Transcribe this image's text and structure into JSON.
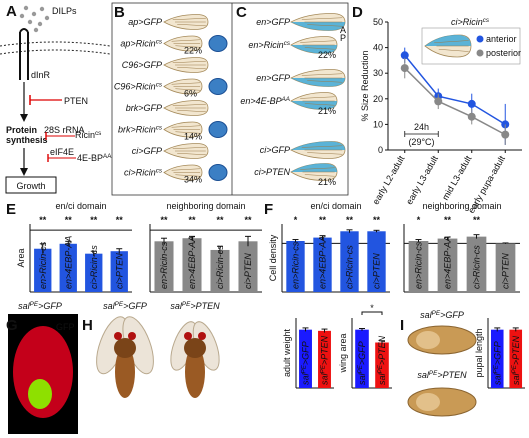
{
  "panel_a": {
    "label": "A",
    "ligand": "DILPs",
    "receptor": "dInR",
    "inhibitor": "PTEN",
    "rrna": "28S rRNA",
    "ricin": {
      "pre": "Ricin",
      "sup": "cs"
    },
    "eif": "eIF4E",
    "bp": {
      "pre": "4E-BP",
      "sup": "AA"
    },
    "process": [
      "Protein",
      "synthesis"
    ],
    "outcome": "Growth"
  },
  "panel_b": {
    "label": "B",
    "rows": [
      {
        "genotype": "ap>GFP"
      },
      {
        "genotype": {
          "pre": "ap>Ricin",
          "sup": "cs"
        },
        "reduction": "22%"
      },
      {
        "genotype": "C96>GFP"
      },
      {
        "genotype": {
          "pre": "C96>Ricin",
          "sup": "cs"
        },
        "reduction": "6%"
      },
      {
        "genotype": "brk>GFP"
      },
      {
        "genotype": {
          "pre": "brk>Ricin",
          "sup": "cs"
        },
        "reduction": "14%"
      },
      {
        "genotype": "ci>GFP"
      },
      {
        "genotype": {
          "pre": "ci>Ricin",
          "sup": "cs"
        },
        "reduction": "34%"
      }
    ]
  },
  "panel_c": {
    "label": "C",
    "compartments": [
      "A",
      "P"
    ],
    "rows": [
      {
        "genotype": "en>GFP"
      },
      {
        "genotype": {
          "pre": "en>Ricin",
          "sup": "cs"
        },
        "reduction": "22%"
      },
      {
        "genotype": "en>GFP"
      },
      {
        "genotype": {
          "pre": "en>4E-BP",
          "sup": "AA"
        },
        "reduction": "21%"
      },
      {
        "genotype": "ci>GFP"
      },
      {
        "genotype": "ci>PTEN",
        "reduction": "21%"
      }
    ]
  },
  "panel_g": {
    "label": "G",
    "genotype": {
      "pre": "sal",
      "sup": "PE",
      "post": ">GFP"
    },
    "channel": "GFP"
  },
  "panel_h": {
    "label": "H",
    "genotypes": [
      {
        "pre": "sal",
        "sup": "PE",
        "post": ">GFP"
      },
      {
        "pre": "sal",
        "sup": "PE",
        "post": ">PTEN"
      }
    ]
  },
  "panel_i": {
    "label": "I",
    "genotypes": [
      {
        "pre": "sal",
        "sup": "PE",
        "post": ">GFP"
      },
      {
        "pre": "sal",
        "sup": "PE",
        "post": ">PTEN"
      }
    ]
  },
  "chart_data": [
    {
      "type": "line",
      "panel": "D",
      "inset_title": {
        "pre": "ci>Ricin",
        "sup": "cs"
      },
      "ylabel": "% Size Reduction",
      "categories": [
        "early L2-adult",
        "early L3-adult",
        "mid L3-adult",
        "early pupa-adult"
      ],
      "series": [
        {
          "name": "anterior",
          "color": "#2255e0",
          "values": [
            37,
            21,
            18,
            10
          ],
          "errors": [
            3,
            3,
            4,
            8
          ]
        },
        {
          "name": "posterior",
          "color": "#888888",
          "values": [
            32,
            19,
            13,
            6
          ],
          "errors": [
            4,
            3,
            3,
            4
          ]
        }
      ],
      "ylim": [
        0,
        50
      ],
      "yticks": [
        0,
        10,
        20,
        30,
        40,
        50
      ],
      "annotation": "24h",
      "annotation_sub": "(29°C)"
    },
    {
      "type": "bar",
      "panel": "E",
      "title": "en/ci domain",
      "title_color": "#2255e0",
      "ylabel": "Area",
      "categories": [
        "en>Ricin-cs",
        "en>4EBP-AA",
        "ci>Ricin-cs",
        "ci>PTEN"
      ],
      "values": [
        0.7,
        0.78,
        0.62,
        0.66
      ],
      "errors": [
        0.08,
        0.04,
        0.04,
        0.04
      ],
      "significance": [
        "**",
        "**",
        "**",
        "**"
      ],
      "color": "#2255e0",
      "ylim": [
        0,
        1.1
      ],
      "reference": 1
    },
    {
      "type": "bar",
      "title": "neighboring domain",
      "title_color": "#777777",
      "categories": [
        "en>Ricin-cs",
        "en>4EBP-AA",
        "ci>Ricin-cs",
        "ci>PTEN"
      ],
      "values": [
        0.82,
        0.87,
        0.68,
        0.82
      ],
      "errors": [
        0.05,
        0.03,
        0.06,
        0.08
      ],
      "significance": [
        "**",
        "**",
        "**",
        "**"
      ],
      "color": "#888888",
      "ylim": [
        0,
        1.1
      ],
      "reference": 1
    },
    {
      "type": "bar",
      "panel": "F",
      "title": "en/ci domain",
      "title_color": "#2255e0",
      "ylabel": "Cell density",
      "categories": [
        "en>Ricin-cs",
        "en>4EBP-AA",
        "ci>Ricin-cs",
        "ci>PTEN"
      ],
      "values": [
        1.05,
        1.12,
        1.25,
        1.25
      ],
      "errors": [
        0.03,
        0.04,
        0.03,
        0.02
      ],
      "significance": [
        "*",
        "**",
        "**",
        "**"
      ],
      "color": "#2255e0",
      "ylim": [
        0,
        1.4
      ],
      "reference": 1
    },
    {
      "type": "bar",
      "title": "neighboring domain",
      "title_color": "#777777",
      "categories": [
        "en>Ricin-cs",
        "en>4EBP-AA",
        "ci>Ricin-cs",
        "ci>PTEN"
      ],
      "values": [
        1.05,
        1.1,
        1.14,
        1.0
      ],
      "errors": [
        0.03,
        0.03,
        0.04,
        0.01
      ],
      "significance": [
        "*",
        "**",
        "**",
        null
      ],
      "color": "#888888",
      "ylim": [
        0,
        1.4
      ],
      "reference": 1
    },
    {
      "type": "bar",
      "ylabel": "adult weight",
      "categories": [
        {
          "pre": "sal",
          "sup": "PE",
          "post": ">GFP"
        },
        {
          "pre": "sal",
          "sup": "PE",
          "post": ">PTEN"
        }
      ],
      "values": [
        1,
        0.98
      ],
      "errors": [
        0.03,
        0.03
      ],
      "colors": [
        "#1a1aff",
        "#ee1111"
      ],
      "ylim": [
        0,
        1.2
      ]
    },
    {
      "type": "bar",
      "ylabel": "wing area",
      "categories": [
        {
          "pre": "sal",
          "sup": "PE",
          "post": ">GFP"
        },
        {
          "pre": "sal",
          "sup": "PE",
          "post": ">PTEN"
        }
      ],
      "values": [
        1,
        0.78
      ],
      "errors": [
        0.02,
        0.03
      ],
      "colors": [
        "#1a1aff",
        "#ee1111"
      ],
      "ylim": [
        0,
        1.2
      ],
      "comparison": "*"
    },
    {
      "type": "bar",
      "ylabel": "pupal length",
      "categories": [
        {
          "pre": "sal",
          "sup": "PE",
          "post": ">GFP"
        },
        {
          "pre": "sal",
          "sup": "PE",
          "post": ">PTEN"
        }
      ],
      "values": [
        1,
        1
      ],
      "errors": [
        0.03,
        0.03
      ],
      "colors": [
        "#1a1aff",
        "#ee1111"
      ],
      "ylim": [
        0,
        1.2
      ]
    }
  ]
}
